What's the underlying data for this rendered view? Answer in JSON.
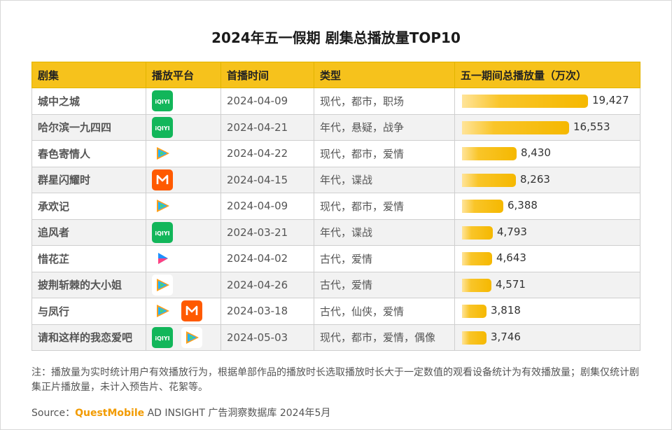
{
  "title": "2024年五一假期 剧集总播放量TOP10",
  "headers": [
    "剧集",
    "播放平台",
    "首播时间",
    "类型",
    "五一期间总播放量（万次）"
  ],
  "platform_icons": {
    "iqiyi": {
      "label": "iQIYI",
      "color": "#12B65A"
    },
    "tencent": {
      "label": "",
      "color": "#FFFFFF"
    },
    "mango": {
      "label": "M",
      "color": "#FF5A00"
    },
    "youku": {
      "label": "",
      "color": "#FFFFFF"
    }
  },
  "rows": [
    {
      "name": "城中之城",
      "platforms": [
        "iqiyi"
      ],
      "date": "2024-04-09",
      "genre": "现代，都市，职场",
      "value_label": "19,427"
    },
    {
      "name": "哈尔滨一九四四",
      "platforms": [
        "iqiyi"
      ],
      "date": "2024-04-21",
      "genre": "年代，悬疑，战争",
      "value_label": "16,553"
    },
    {
      "name": "春色寄情人",
      "platforms": [
        "tencent"
      ],
      "date": "2024-04-22",
      "genre": "现代，都市，爱情",
      "value_label": "8,430"
    },
    {
      "name": "群星闪耀时",
      "platforms": [
        "mango"
      ],
      "date": "2024-04-15",
      "genre": "年代，谍战",
      "value_label": "8,263"
    },
    {
      "name": "承欢记",
      "platforms": [
        "tencent"
      ],
      "date": "2024-04-09",
      "genre": "现代，都市，爱情",
      "value_label": "6,388"
    },
    {
      "name": "追风者",
      "platforms": [
        "iqiyi"
      ],
      "date": "2024-03-21",
      "genre": "年代，谍战",
      "value_label": "4,793"
    },
    {
      "name": "惜花芷",
      "platforms": [
        "youku"
      ],
      "date": "2024-04-02",
      "genre": "古代，爱情",
      "value_label": "4,643"
    },
    {
      "name": "披荆斩棘的大小姐",
      "platforms": [
        "tencent"
      ],
      "date": "2024-04-26",
      "genre": "古代，爱情",
      "value_label": "4,571"
    },
    {
      "name": "与凤行",
      "platforms": [
        "tencent",
        "mango"
      ],
      "date": "2024-03-18",
      "genre": "古代，仙侠，爱情",
      "value_label": "3,818"
    },
    {
      "name": "请和这样的我恋爱吧",
      "platforms": [
        "iqiyi",
        "tencent"
      ],
      "date": "2024-05-03",
      "genre": "现代，都市，爱情，偶像",
      "value_label": "3,746"
    }
  ],
  "chart_data": {
    "type": "bar",
    "title": "2024年五一假期 剧集总播放量TOP10",
    "ylabel": "五一期间总播放量（万次）",
    "categories": [
      "城中之城",
      "哈尔滨一九四四",
      "春色寄情人",
      "群星闪耀时",
      "承欢记",
      "追风者",
      "惜花芷",
      "披荆斩棘的大小姐",
      "与凤行",
      "请和这样的我恋爱吧"
    ],
    "values": [
      19427,
      16553,
      8430,
      8263,
      6388,
      4793,
      4643,
      4571,
      3818,
      3746
    ],
    "xlim": [
      0,
      19427
    ]
  },
  "note": "注：播放量为实时统计用户有效播放行为，根据单部作品的播放时长选取播放时长大于一定数值的观看设备统计为有效播放量；剧集仅统计剧集正片播放量，未计入预告片、花絮等。",
  "source": {
    "prefix": "Source：",
    "brand": "QuestMobile",
    "suffix": " AD INSIGHT 广告洞察数据库 2024年5月"
  },
  "colors": {
    "header": "#F6C21C",
    "bar": "#F5B800",
    "brand": "#F29B00"
  }
}
